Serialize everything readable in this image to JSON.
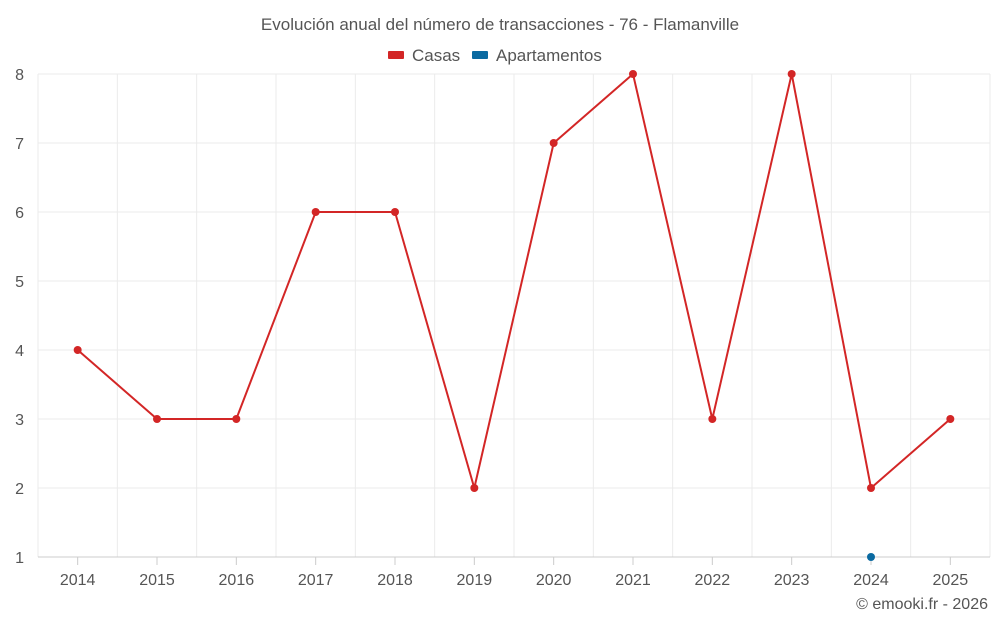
{
  "chart_data": {
    "type": "line",
    "title": "Evolución anual del número de transacciones - 76 - Flamanville",
    "categories": [
      "2014",
      "2015",
      "2016",
      "2017",
      "2018",
      "2019",
      "2020",
      "2021",
      "2022",
      "2023",
      "2024",
      "2025"
    ],
    "series": [
      {
        "name": "Casas",
        "color": "#d32626",
        "values": [
          4,
          3,
          3,
          6,
          6,
          2,
          7,
          8,
          3,
          8,
          2,
          3
        ]
      },
      {
        "name": "Apartamentos",
        "color": "#0a6aa1",
        "values": [
          null,
          null,
          null,
          null,
          null,
          null,
          null,
          null,
          null,
          null,
          1,
          null
        ]
      }
    ],
    "y_ticks": [
      1,
      2,
      3,
      4,
      5,
      6,
      7,
      8
    ],
    "ylim": [
      1,
      8
    ],
    "grid": true,
    "legend_position": "top-center"
  },
  "credit": "© emooki.fr - 2026"
}
